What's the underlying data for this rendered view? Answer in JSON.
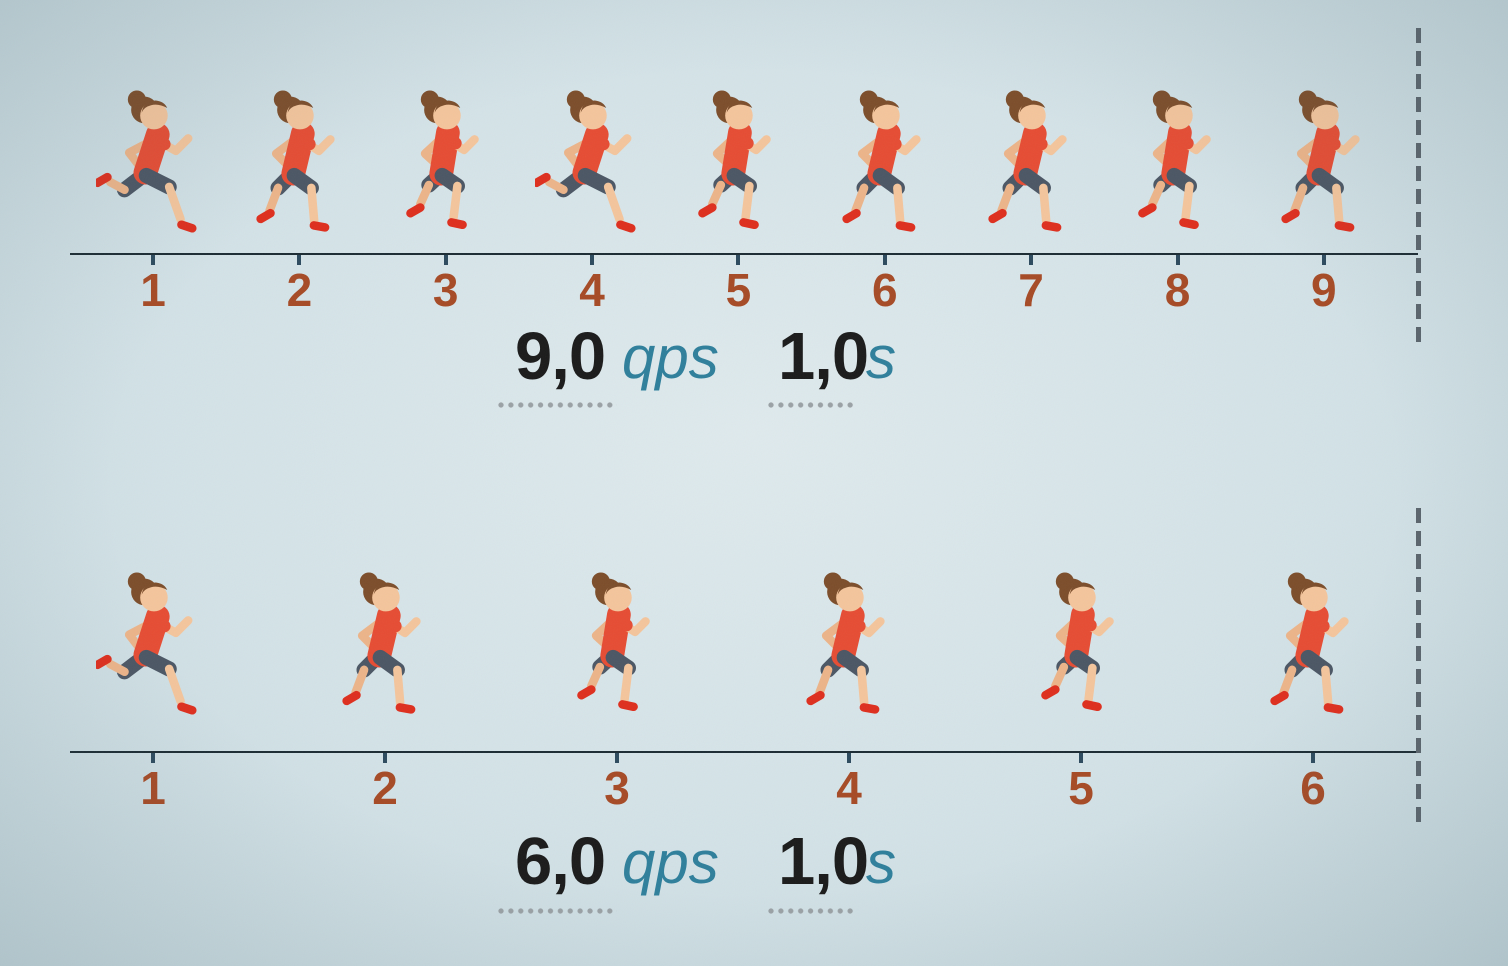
{
  "scenes": [
    {
      "id": "nine-per-second",
      "runner_count": 9,
      "tick_labels": [
        "1",
        "2",
        "3",
        "4",
        "5",
        "6",
        "7",
        "8",
        "9"
      ],
      "runner_poses": [
        "stride",
        "step",
        "tuck",
        "stride",
        "tuck",
        "step",
        "step",
        "tuck",
        "step"
      ],
      "rate_value": "9,0",
      "rate_unit": "qps",
      "time_value": "1,0",
      "time_unit": "s"
    },
    {
      "id": "six-per-second",
      "runner_count": 6,
      "tick_labels": [
        "1",
        "2",
        "3",
        "4",
        "5",
        "6"
      ],
      "runner_poses": [
        "stride",
        "step",
        "tuck",
        "step",
        "tuck",
        "step"
      ],
      "rate_value": "6,0",
      "rate_unit": "qps",
      "time_value": "1,0",
      "time_unit": "s"
    }
  ],
  "icons": {
    "runner": "female-runner-icon",
    "finish": "dashed-finish-line"
  },
  "colors": {
    "background": "#d3e2e7",
    "shirt": "#E64C33",
    "shorts": "#4B5664",
    "skin": "#F4C59C",
    "hair": "#7C4D2A",
    "shoes": "#DE2E1D",
    "timeline": "#1b2b33",
    "tick_marks": "#2c4a5e",
    "tick_numbers": "#a64a25",
    "value_text": "#1a1a1a",
    "unit_text": "#2e7f9b",
    "underline_dots": "#9aa1a5",
    "dashed_line": "#5a646c"
  }
}
